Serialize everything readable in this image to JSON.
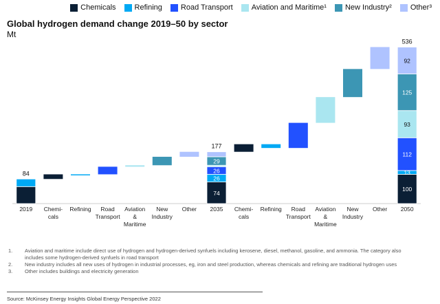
{
  "chart_data": {
    "type": "waterfall",
    "title": "Global hydrogen demand change 2019–50 by sector",
    "subtitle": "Mt",
    "categories": [
      "2019",
      "Chemi-\ncals",
      "Refining",
      "Road\nTransport",
      "Aviation\n&\nMaritime",
      "New\nIndustry",
      "Other",
      "2035",
      "Chemi-\ncals",
      "Refining",
      "Road\nTransport",
      "Aviation\n&\nMaritime",
      "New\nIndustry",
      "Other",
      "2050"
    ],
    "totals": [
      84,
      null,
      null,
      null,
      null,
      null,
      null,
      177,
      null,
      null,
      null,
      null,
      null,
      null,
      536
    ],
    "series": [
      {
        "name": "Chemicals",
        "color": "#0b1f35",
        "values": [
          58,
          16,
          null,
          null,
          null,
          null,
          null,
          74,
          26,
          null,
          null,
          null,
          null,
          null,
          100
        ],
        "show_values": [
          7,
          14
        ]
      },
      {
        "name": "Refining",
        "color": "#00a9f4",
        "values": [
          26,
          null,
          0,
          null,
          null,
          null,
          null,
          26,
          null,
          -13,
          null,
          null,
          null,
          null,
          13
        ],
        "show_values": [
          7,
          14
        ]
      },
      {
        "name": "Road Transport",
        "color": "#2251ff",
        "values": [
          null,
          null,
          null,
          26,
          null,
          null,
          null,
          26,
          null,
          null,
          86,
          null,
          null,
          null,
          112
        ],
        "show_values": [
          7,
          14
        ]
      },
      {
        "name": "Aviation and Maritime¹",
        "color": "#aae6f0",
        "values": [
          null,
          null,
          null,
          null,
          5,
          null,
          null,
          5,
          null,
          null,
          null,
          88,
          null,
          null,
          93
        ],
        "show_values": [
          14
        ]
      },
      {
        "name": "New Industry²",
        "color": "#3c96b4",
        "values": [
          null,
          null,
          null,
          null,
          null,
          29,
          null,
          29,
          null,
          null,
          null,
          null,
          96,
          null,
          125
        ],
        "show_values": [
          7,
          14
        ]
      },
      {
        "name": "Other³",
        "color": "#afc3ff",
        "values": [
          null,
          null,
          null,
          null,
          null,
          null,
          17,
          17,
          null,
          null,
          null,
          null,
          null,
          75,
          92
        ],
        "show_values": [
          14
        ]
      }
    ],
    "footnotes": [
      {
        "marker": "1.",
        "text": "Aviation and maritime include direct use of hydrogen and hydrogen-derived synfuels including kerosene, diesel, methanol, gasoline, and ammonia. The category also includes some hydrogen-derived synfuels in road transport"
      },
      {
        "marker": "2.",
        "text": "New industry includes all new uses of hydrogen in industrial processes, eg, iron and steel production, whereas chemicals and refining are traditional hydrogen uses"
      },
      {
        "marker": "3.",
        "text": "Other includes buildings and electricity generation"
      }
    ],
    "source": "Source: McKinsey Energy Insights Global Energy Perspective 2022"
  }
}
